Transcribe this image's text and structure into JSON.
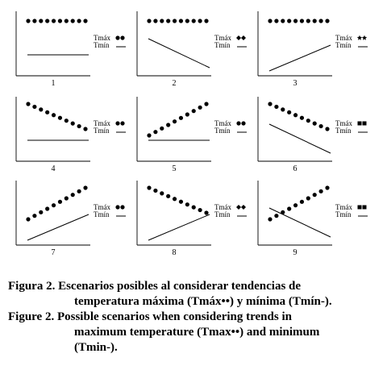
{
  "panels": [
    {
      "label": "1",
      "tmax": "flat",
      "tmin": "flat",
      "legend_max": "Tmáx",
      "legend_min": "Tmín",
      "marker": "round"
    },
    {
      "label": "2",
      "tmax": "flat",
      "tmin": "down",
      "legend_max": "Tmáx",
      "legend_min": "Tmín",
      "marker": "diamond"
    },
    {
      "label": "3",
      "tmax": "flat",
      "tmin": "up",
      "legend_max": "Tmáx",
      "legend_min": "Tmín",
      "marker": "star"
    },
    {
      "label": "4",
      "tmax": "down",
      "tmin": "flat",
      "legend_max": "Tmáx",
      "legend_min": "Tmín",
      "marker": "round"
    },
    {
      "label": "5",
      "tmax": "up",
      "tmin": "flat",
      "legend_max": "Tmáx",
      "legend_min": "Tmín",
      "marker": "round"
    },
    {
      "label": "6",
      "tmax": "down",
      "tmin": "down",
      "legend_max": "Tmáx",
      "legend_min": "Tmín",
      "marker": "square"
    },
    {
      "label": "7",
      "tmax": "up",
      "tmin": "up",
      "legend_max": "Tmáx",
      "legend_min": "Tmín",
      "marker": "round"
    },
    {
      "label": "8",
      "tmax": "down",
      "tmin": "up",
      "legend_max": "Tmáx",
      "legend_min": "Tmín",
      "marker": "diamond"
    },
    {
      "label": "9",
      "tmax": "up",
      "tmin": "down",
      "legend_max": "Tmáx",
      "legend_min": "Tmín",
      "marker": "square"
    }
  ],
  "caption": {
    "es_line1": "Figura 2. Escenarios posibles al considerar tendencias de",
    "es_line2": "temperatura máxima (Tmáx••) y mínima (Tmín-).",
    "en_line1": "Figure 2. Possible scenarios when considering trends in",
    "en_line2": "maximum temperature (Tmax••) and minimum",
    "en_line3": "(Tmin-)."
  }
}
